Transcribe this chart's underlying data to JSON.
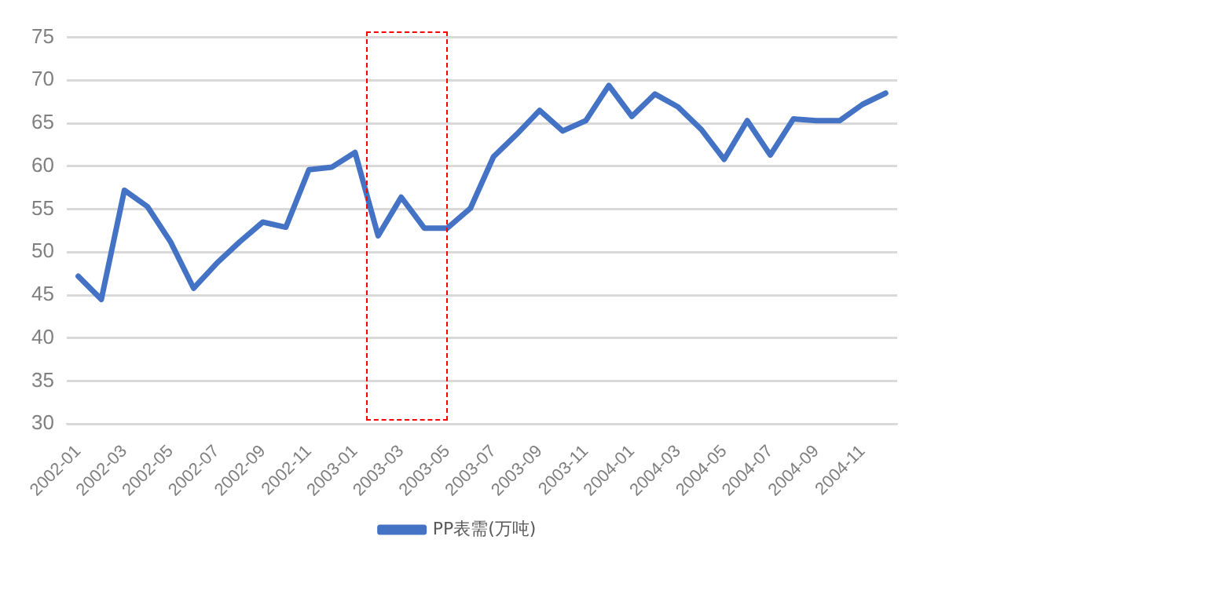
{
  "chart_data": {
    "type": "line",
    "categories": [
      "2002-01",
      null,
      "2002-03",
      null,
      "2002-05",
      null,
      "2002-07",
      null,
      "2002-09",
      null,
      "2002-11",
      null,
      "2003-01",
      null,
      "2003-03",
      null,
      "2003-05",
      null,
      "2003-07",
      null,
      "2003-09",
      null,
      "2003-11",
      null,
      "2004-01",
      null,
      "2004-03",
      null,
      "2004-05",
      null,
      "2004-07",
      null,
      "2004-09",
      null,
      "2004-11",
      null
    ],
    "series": [
      {
        "name": "PP表需(万吨)",
        "color": "#4472c4",
        "values": [
          47.2,
          44.5,
          57.2,
          55.3,
          51.2,
          45.8,
          48.7,
          51.2,
          53.5,
          52.9,
          59.6,
          59.9,
          61.6,
          51.9,
          56.4,
          52.8,
          52.8,
          55.1,
          61.1,
          63.7,
          66.5,
          64.1,
          65.3,
          69.4,
          65.8,
          68.4,
          66.9,
          64.3,
          60.8,
          65.3,
          61.3,
          65.5,
          65.3,
          65.3,
          67.2,
          68.5
        ]
      }
    ],
    "ylim": [
      30,
      75
    ],
    "yticks": [
      30,
      35,
      40,
      45,
      50,
      55,
      60,
      65,
      70,
      75
    ],
    "grid": "y",
    "legend": "bottom",
    "marker": "none",
    "line_style": "solid"
  }
}
